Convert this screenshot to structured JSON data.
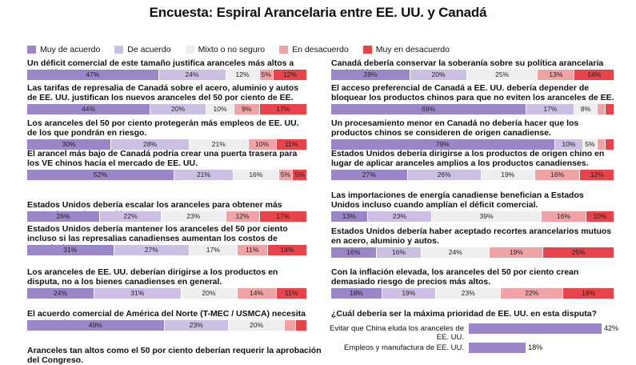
{
  "title": "Encuesta: Espiral Arancelaria entre EE. UU. y Canadá",
  "legend": [
    {
      "label": "Muy de acuerdo",
      "color": "#9b86c7"
    },
    {
      "label": "De acuerdo",
      "color": "#cbc0e3"
    },
    {
      "label": "Mixto o no seguro",
      "color": "#eeeeee"
    },
    {
      "label": "En desacuerdo",
      "color": "#f1a2a4"
    },
    {
      "label": "Muy en desacuerdo",
      "color": "#e8424b"
    }
  ],
  "chart_data": [
    {
      "type": "bar",
      "stacked": true,
      "orientation": "horizontal",
      "title": "Encuesta: Espiral Arancelaria entre EE. UU. y Canadá",
      "series_names": [
        "Muy de acuerdo",
        "De acuerdo",
        "Mixto o no seguro",
        "En desacuerdo",
        "Muy en desacuerdo"
      ],
      "items": [
        {
          "q": "Un déficit comercial de este tamaño justifica aranceles más altos a Canadá.",
          "values": [
            47,
            24,
            12,
            5,
            12
          ],
          "labels": [
            "47%",
            "24%",
            "12%",
            "5%",
            "12%"
          ]
        },
        {
          "q": "Las tarifas de represalia de Canadá sobre el acero, aluminio y autos de EE. UU. justifican los nuevos aranceles del 50 por ciento de EE. UU.",
          "values": [
            44,
            20,
            10,
            9,
            17
          ],
          "labels": [
            "44%",
            "20%",
            "10%",
            "9%",
            "17%"
          ]
        },
        {
          "q": "Los aranceles del 50 por ciento protegerán más empleos de EE. UU. de los que pondrán en riesgo.",
          "values": [
            30,
            28,
            21,
            10,
            11
          ],
          "labels": [
            "30%",
            "28%",
            "21%",
            "10%",
            "11%"
          ]
        },
        {
          "q": "El arancel más bajo de Canadá podría crear una puerta trasera para los VE chinos hacia el mercado de EE. UU.",
          "values": [
            52,
            21,
            16,
            5,
            5
          ],
          "labels": [
            "52%",
            "21%",
            "16%",
            "5%",
            "5%"
          ]
        },
        {
          "q": "Estados Unidos debería escalar los aranceles para obtener más concesiones de Canadá.",
          "values": [
            26,
            22,
            23,
            12,
            17
          ],
          "labels": [
            "26%",
            "22%",
            "23%",
            "12%",
            "17%"
          ]
        },
        {
          "q": "Estados Unidos debería mantener los aranceles del 50 por ciento incluso si las represalias canadienses aumentan los costos de energía de EE. UU.",
          "values": [
            31,
            27,
            17,
            11,
            14
          ],
          "labels": [
            "31%",
            "27%",
            "17%",
            "11%",
            "14%"
          ]
        },
        {
          "q": "Los aranceles de EE. UU. deberían dirigirse a los productos en disputa, no a los bienes canadienses en general.",
          "values": [
            24,
            31,
            20,
            14,
            11
          ],
          "labels": [
            "24%",
            "31%",
            "20%",
            "14%",
            "11%"
          ]
        },
        {
          "q": "El acuerdo comercial de América del Norte (T-MEC / USMCA) necesita cambios importantes.",
          "values": [
            49,
            23,
            20,
            4,
            4
          ],
          "labels": [
            "49%",
            "23%",
            "20%",
            "",
            ""
          ]
        },
        {
          "q": "Canadá debería conservar la soberanía sobre su política arancelaria hacia China.",
          "values": [
            28,
            20,
            25,
            13,
            14
          ],
          "labels": [
            "28%",
            "20%",
            "25%",
            "13%",
            "14%"
          ]
        },
        {
          "q": "El acceso preferencial de Canadá a EE. UU. debería depender de bloquear los productos chinos para que no eviten los aranceles de EE. UU.",
          "values": [
            69,
            17,
            8,
            3,
            3
          ],
          "labels": [
            "69%",
            "17%",
            "8%",
            "",
            ""
          ]
        },
        {
          "q": "Un procesamiento menor en Canadá no debería hacer que los productos chinos se consideren de origen canadiense.",
          "values": [
            79,
            10,
            5,
            3,
            3
          ],
          "labels": [
            "79%",
            "10%",
            "5%",
            "",
            ""
          ]
        },
        {
          "q": "Estados Unidos debería dirigirse a los productos de origen chino en lugar de aplicar aranceles amplios a los productos canadienses.",
          "values": [
            27,
            26,
            19,
            16,
            12
          ],
          "labels": [
            "27%",
            "26%",
            "19%",
            "16%",
            "12%"
          ]
        },
        {
          "q": "Las importaciones de energía canadiense benefician a Estados Unidos incluso cuando amplían el déficit comercial.",
          "values": [
            13,
            23,
            39,
            16,
            10
          ],
          "labels": [
            "13%",
            "23%",
            "39%",
            "16%",
            "10%"
          ]
        },
        {
          "q": "Estados Unidos debería haber aceptado recortes arancelarios mutuos en acero, aluminio y autos.",
          "values": [
            16,
            16,
            24,
            19,
            25
          ],
          "labels": [
            "16%",
            "16%",
            "24%",
            "19%",
            "25%"
          ]
        },
        {
          "q": "Con la inflación elevada, los aranceles del 50 por ciento crean demasiado riesgo de precios más altos.",
          "values": [
            18,
            19,
            23,
            22,
            18
          ],
          "labels": [
            "18%",
            "19%",
            "23%",
            "22%",
            "18%"
          ]
        }
      ],
      "truncated_question": "Aranceles tan altos como el 50 por ciento deberían requerir la aprobación del Congreso."
    },
    {
      "type": "bar",
      "orientation": "horizontal",
      "title": "¿Cuál debería ser la máxima prioridad de EE. UU. en esta disputa?",
      "categories": [
        "Evitar que China eluda los aranceles de EE. UU.",
        "Empleos y manufactura de EE. UU."
      ],
      "values": [
        42,
        18
      ],
      "labels": [
        "42%",
        "18%"
      ]
    }
  ]
}
